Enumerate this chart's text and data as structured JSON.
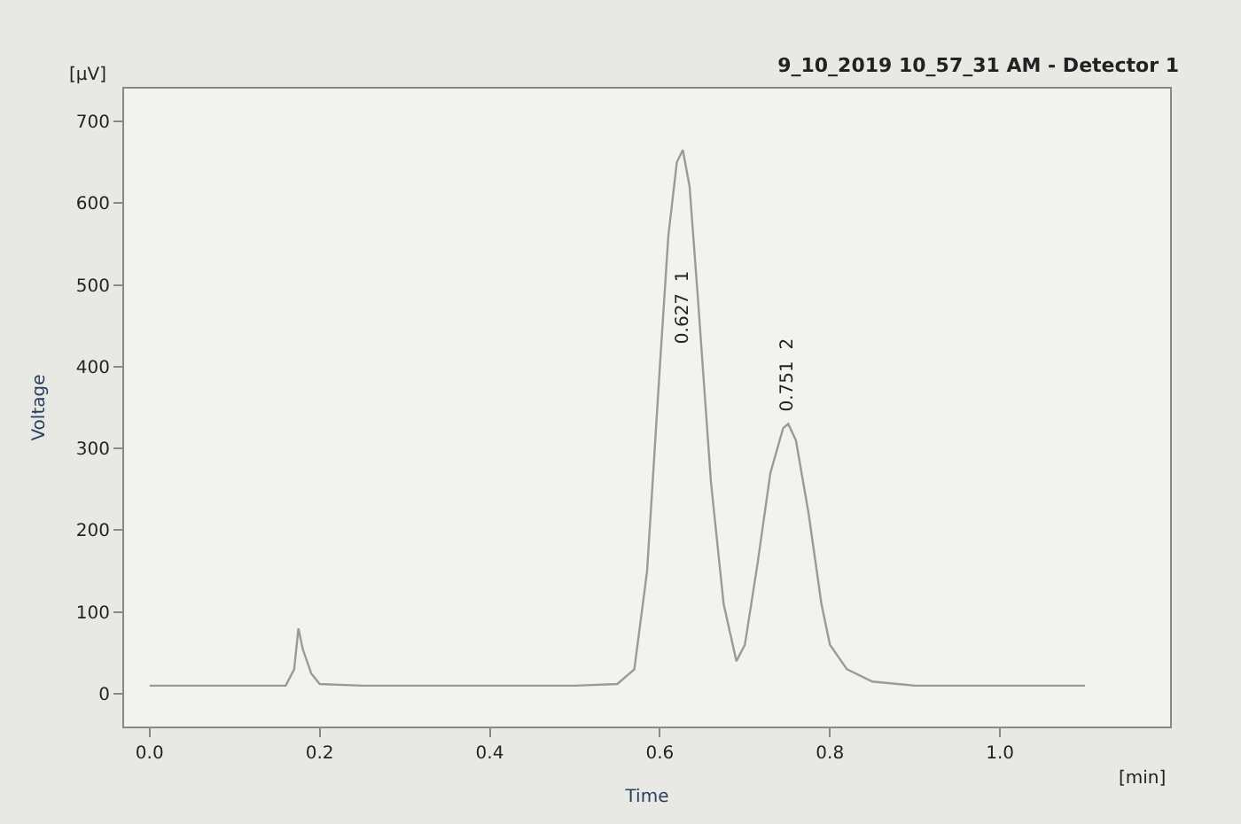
{
  "chart_data": {
    "type": "line",
    "title": "9_10_2019 10_57_31 AM - Detector 1",
    "xlabel": "Time",
    "ylabel": "Voltage",
    "annotations": [
      "[μV]",
      "[min]",
      "0.627  1",
      "0.751  2"
    ],
    "x": [
      0.0,
      0.1,
      0.16,
      0.17,
      0.175,
      0.18,
      0.19,
      0.2,
      0.25,
      0.4,
      0.5,
      0.55,
      0.57,
      0.585,
      0.6,
      0.61,
      0.62,
      0.627,
      0.635,
      0.645,
      0.66,
      0.675,
      0.69,
      0.7,
      0.715,
      0.73,
      0.745,
      0.751,
      0.76,
      0.775,
      0.79,
      0.8,
      0.82,
      0.85,
      0.9,
      1.0,
      1.1
    ],
    "series": [
      {
        "color": "#9a9a9a",
        "values": [
          10,
          10,
          10,
          30,
          80,
          55,
          25,
          12,
          10,
          10,
          10,
          12,
          30,
          150,
          400,
          560,
          650,
          665,
          620,
          480,
          260,
          110,
          40,
          60,
          160,
          270,
          325,
          330,
          310,
          220,
          110,
          60,
          30,
          15,
          10,
          10,
          10
        ]
      }
    ],
    "xlim": [
      -0.03,
      1.2
    ],
    "ylim": [
      -40,
      740
    ],
    "xticks": [
      {
        "value": 0.0,
        "label": "0.0"
      },
      0.2,
      0.4,
      0.6,
      0.8,
      {
        "value": 1.0,
        "label": "1.0"
      }
    ],
    "yticks": [
      0,
      100,
      200,
      300,
      400,
      500,
      600,
      700
    ],
    "grid": false,
    "marker": "none",
    "line_style": "solid"
  }
}
